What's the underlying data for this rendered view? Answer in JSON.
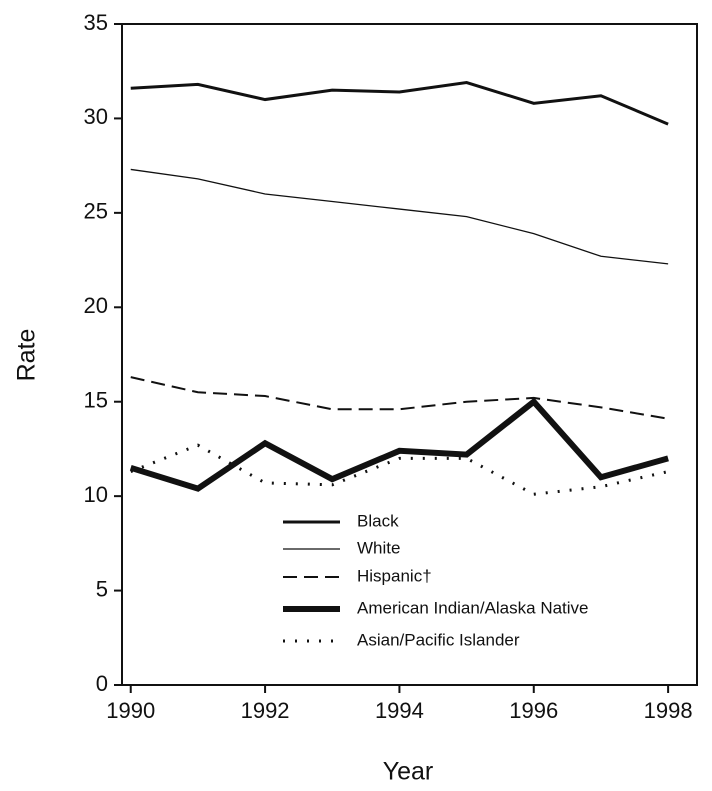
{
  "chart_data": {
    "type": "line",
    "x_label": "Year",
    "y_label": "Rate",
    "x": [
      1990,
      1991,
      1992,
      1993,
      1994,
      1995,
      1996,
      1997,
      1998
    ],
    "xlim": [
      1989.87,
      1998.43
    ],
    "xticks": [
      1990,
      1992,
      1994,
      1996,
      1998
    ],
    "ylim": [
      0,
      35
    ],
    "yticks": [
      0,
      5,
      10,
      15,
      20,
      25,
      30,
      35
    ],
    "grid": false,
    "legend": "lower center",
    "series": [
      {
        "name": "Black",
        "color": "#111111",
        "values": [
          31.6,
          31.8,
          31.0,
          31.5,
          31.4,
          31.9,
          30.8,
          31.2,
          29.7
        ]
      },
      {
        "name": "White",
        "color": "#111111",
        "values": [
          27.3,
          26.8,
          26.0,
          25.6,
          25.2,
          24.8,
          23.9,
          22.7,
          22.3
        ]
      },
      {
        "name": "Hispanic†",
        "color": "#111111",
        "values": [
          16.3,
          15.5,
          15.3,
          14.6,
          14.6,
          15.0,
          15.2,
          14.7,
          14.1
        ]
      },
      {
        "name": "American Indian/Alaska Native",
        "color": "#111111",
        "values": [
          11.5,
          10.4,
          12.8,
          10.9,
          12.4,
          12.2,
          15.0,
          11.0,
          12.0
        ]
      },
      {
        "name": "Asian/Pacific Islander",
        "color": "#111111",
        "values": [
          11.3,
          12.7,
          10.7,
          10.6,
          12.0,
          12.0,
          10.1,
          10.5,
          11.3
        ]
      }
    ]
  }
}
